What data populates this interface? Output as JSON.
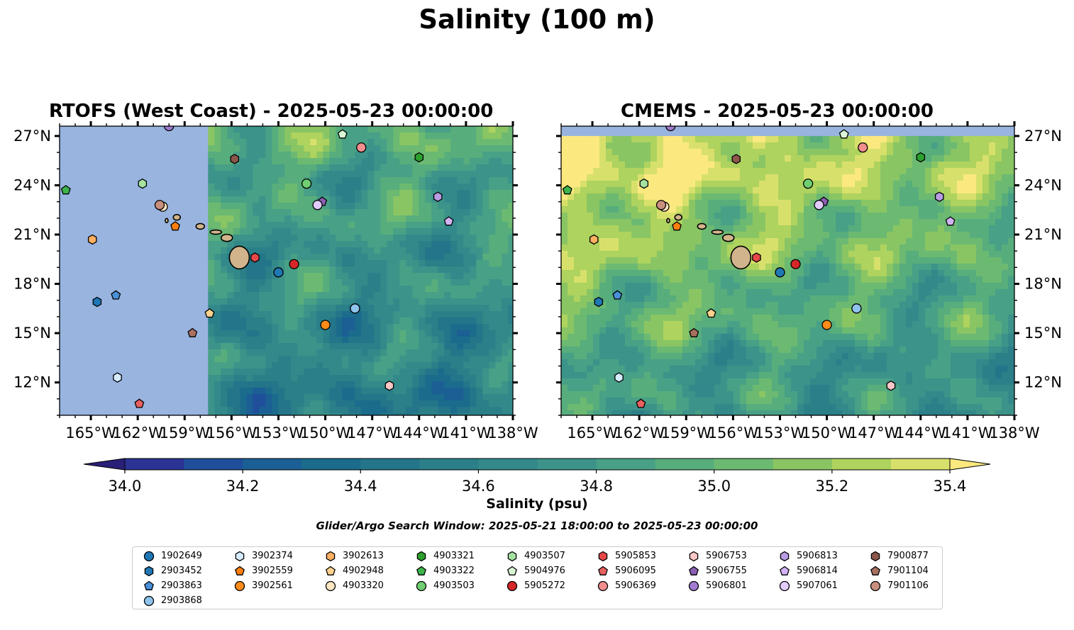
{
  "title": "Salinity (100 m)",
  "panels": [
    {
      "title": "RTOFS (West Coast) - 2025-05-23 00:00:00",
      "coverage_lon_min": -157.5
    },
    {
      "title": "CMEMS - 2025-05-23 00:00:00",
      "coverage_lat_max": 27
    }
  ],
  "map_extent": {
    "lon": [
      -167,
      -138
    ],
    "lat": [
      10,
      27.6
    ]
  },
  "lon_ticks": [
    "165°W",
    "162°W",
    "159°W",
    "156°W",
    "153°W",
    "150°W",
    "147°W",
    "144°W",
    "141°W",
    "138°W"
  ],
  "lat_ticks": [
    "27°N",
    "24°N",
    "21°N",
    "18°N",
    "15°N",
    "12°N"
  ],
  "colorbar": {
    "label": "Salinity (psu)",
    "ticks": [
      "34.0",
      "34.2",
      "34.4",
      "34.6",
      "34.8",
      "35.0",
      "35.2",
      "35.4"
    ],
    "min": 34.0,
    "max": 35.4,
    "step": 0.1,
    "extend": "both",
    "colors": [
      "#2a1f78",
      "#2b3394",
      "#1f4f9a",
      "#1b5f95",
      "#1b6b8d",
      "#247589",
      "#2b7f88",
      "#33898a",
      "#3c938a",
      "#48a086",
      "#57ad7c",
      "#6cb972",
      "#8ac564",
      "#aed35e",
      "#d8e06c",
      "#fbe980"
    ]
  },
  "search_window": "Glider/Argo Search Window: 2025-05-21 18:00:00 to 2025-05-23 00:00:00",
  "islands": [
    {
      "name": "Hawaii",
      "lon": -155.5,
      "lat": 19.6
    },
    {
      "name": "Maui",
      "lon": -156.3,
      "lat": 20.8
    },
    {
      "name": "Molokai",
      "lon": -157.0,
      "lat": 21.15
    },
    {
      "name": "Oahu",
      "lon": -158.0,
      "lat": 21.5
    },
    {
      "name": "Kauai",
      "lon": -159.5,
      "lat": 22.05
    },
    {
      "name": "Niihau",
      "lon": -160.15,
      "lat": 21.85
    }
  ],
  "floats": [
    {
      "id": "1902649",
      "shape": "circle",
      "color": "#1f77b4",
      "lon": -153.0,
      "lat": 18.7
    },
    {
      "id": "2903452",
      "shape": "hexagon",
      "color": "#1f77b4",
      "lon": -164.6,
      "lat": 16.9
    },
    {
      "id": "2903863",
      "shape": "pentagon",
      "color": "#4a90d9",
      "lon": -163.4,
      "lat": 17.3
    },
    {
      "id": "2903868",
      "shape": "circle",
      "color": "#8ec3ec",
      "lon": -148.1,
      "lat": 16.5
    },
    {
      "id": "3902374",
      "shape": "hexagon",
      "color": "#d6ecff",
      "lon": -163.3,
      "lat": 12.3
    },
    {
      "id": "3902559",
      "shape": "pentagon",
      "color": "#ff7f0e",
      "lon": -159.6,
      "lat": 21.5
    },
    {
      "id": "3902561",
      "shape": "circle",
      "color": "#ff8c1a",
      "lon": -150.0,
      "lat": 15.5
    },
    {
      "id": "3902613",
      "shape": "hexagon",
      "color": "#ffb060",
      "lon": -164.9,
      "lat": 20.7
    },
    {
      "id": "4902948",
      "shape": "pentagon",
      "color": "#ffd28f",
      "lon": -157.4,
      "lat": 16.2
    },
    {
      "id": "4903320",
      "shape": "circle",
      "color": "#ffe6c2",
      "lon": -160.4,
      "lat": 22.7
    },
    {
      "id": "4903321",
      "shape": "hexagon",
      "color": "#2ca02c",
      "lon": -144.0,
      "lat": 25.7
    },
    {
      "id": "4903322",
      "shape": "pentagon",
      "color": "#3cb44b",
      "lon": -166.6,
      "lat": 23.7
    },
    {
      "id": "4903503",
      "shape": "circle",
      "color": "#6fcf6f",
      "lon": -151.2,
      "lat": 24.1
    },
    {
      "id": "4903507",
      "shape": "hexagon",
      "color": "#a6e3a1",
      "lon": -161.7,
      "lat": 24.1
    },
    {
      "id": "5904976",
      "shape": "pentagon",
      "color": "#d9f7d4",
      "lon": -148.9,
      "lat": 27.1
    },
    {
      "id": "5905272",
      "shape": "circle",
      "color": "#d62728",
      "lon": -152.0,
      "lat": 19.2
    },
    {
      "id": "5905853",
      "shape": "hexagon",
      "color": "#e8474a",
      "lon": -154.5,
      "lat": 19.6
    },
    {
      "id": "5906095",
      "shape": "pentagon",
      "color": "#e86060",
      "lon": -161.9,
      "lat": 10.7
    },
    {
      "id": "5906369",
      "shape": "circle",
      "color": "#f28e8e",
      "lon": -147.7,
      "lat": 26.3
    },
    {
      "id": "5906753",
      "shape": "hexagon",
      "color": "#ffc7c7",
      "lon": -145.9,
      "lat": 11.8
    },
    {
      "id": "5906755",
      "shape": "pentagon",
      "color": "#8c5fb3",
      "lon": -150.2,
      "lat": 23.0
    },
    {
      "id": "5906801",
      "shape": "circle",
      "color": "#a07bd0",
      "lon": -160.0,
      "lat": 27.6
    },
    {
      "id": "5906813",
      "shape": "hexagon",
      "color": "#b99ce3",
      "lon": -142.8,
      "lat": 23.3
    },
    {
      "id": "5906814",
      "shape": "pentagon",
      "color": "#d2b3f5",
      "lon": -142.1,
      "lat": 21.8
    },
    {
      "id": "5907061",
      "shape": "circle",
      "color": "#e2ccff",
      "lon": -150.5,
      "lat": 22.8
    },
    {
      "id": "7900877",
      "shape": "hexagon",
      "color": "#8c564b",
      "lon": -155.8,
      "lat": 25.6
    },
    {
      "id": "7901104",
      "shape": "pentagon",
      "color": "#a8705f",
      "lon": -158.5,
      "lat": 15.0
    },
    {
      "id": "7901106",
      "shape": "circle",
      "color": "#c98f7e",
      "lon": -160.6,
      "lat": 22.8
    }
  ]
}
